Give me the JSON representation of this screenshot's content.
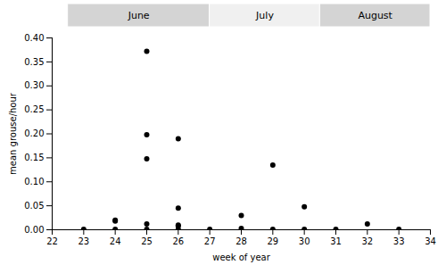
{
  "chart_data": {
    "type": "scatter",
    "x": [
      23,
      24,
      24,
      24,
      25,
      25,
      25,
      25,
      25,
      26,
      26,
      26,
      26,
      26,
      27,
      28,
      28,
      29,
      29,
      30,
      30,
      31,
      32,
      33
    ],
    "values": [
      0.001,
      0.001,
      0.018,
      0.02,
      0.001,
      0.012,
      0.148,
      0.198,
      0.372,
      0.001,
      0.008,
      0.01,
      0.045,
      0.19,
      0.001,
      0.003,
      0.03,
      0.001,
      0.135,
      0.001,
      0.048,
      0.001,
      0.012,
      0.001
    ],
    "color": "#000000",
    "xlabel": "week of year",
    "ylabel": "mean grouse/hour",
    "xlim": [
      22,
      34
    ],
    "ylim": [
      0,
      0.4
    ],
    "xticks": [
      22,
      23,
      24,
      25,
      26,
      27,
      28,
      29,
      30,
      31,
      32,
      33,
      34
    ],
    "yticks": [
      {
        "value": 0.0,
        "label": "0.00"
      },
      {
        "value": 0.05,
        "label": "0.05"
      },
      {
        "value": 0.1,
        "label": "0.10"
      },
      {
        "value": 0.15,
        "label": "0.15"
      },
      {
        "value": 0.2,
        "label": "0.20"
      },
      {
        "value": 0.25,
        "label": "0.25"
      },
      {
        "value": 0.3,
        "label": "0.30"
      },
      {
        "value": 0.35,
        "label": "0.35"
      },
      {
        "value": 0.4,
        "label": "0.40"
      }
    ],
    "annotations": [
      {
        "text": "June",
        "x_start": 22.5,
        "x_end": 27.0,
        "color": "#d4d4d4"
      },
      {
        "text": "July",
        "x_start": 27.0,
        "x_end": 30.5,
        "color": "#f0f0f0"
      },
      {
        "text": "August",
        "x_start": 30.5,
        "x_end": 34.0,
        "color": "#d4d4d4"
      }
    ]
  }
}
